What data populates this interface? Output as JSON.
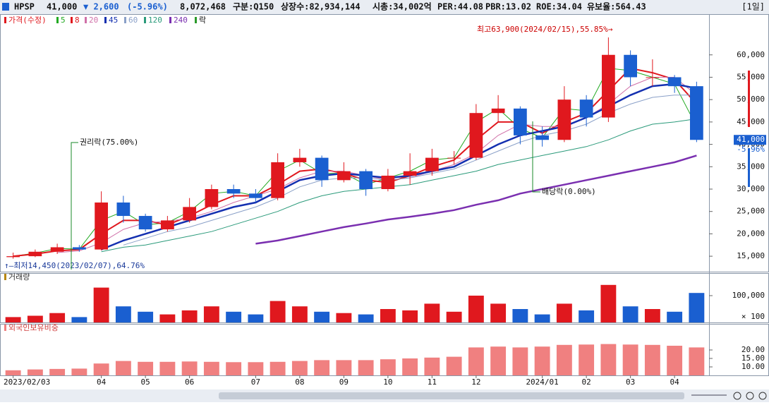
{
  "header": {
    "code": "HPSP",
    "price": "41,000",
    "change": "▼ 2,600",
    "change_pct": "(-5.96%)",
    "volume": "8,072,468",
    "market": "구분:Q150",
    "shares": "상장수:82,934,144",
    "market_cap": "시총:34,002억",
    "per": "PER:44.08",
    "pbr": "PBR:13.02",
    "roe": "ROE:34.04",
    "reserve": "유보율:564.43",
    "period": "[1일]"
  },
  "chart_data": [
    {
      "type": "candlestick",
      "legend_title": "가격(수정)",
      "legend_tail": "락",
      "up_color": "#e0181e",
      "down_color": "#1a5fd0",
      "categories": [
        "2023/02/03",
        null,
        null,
        null,
        "04",
        null,
        "05",
        null,
        "06",
        null,
        null,
        "07",
        null,
        "08",
        null,
        "09",
        null,
        "10",
        null,
        "11",
        null,
        "12",
        null,
        null,
        "2024/01",
        null,
        "02",
        null,
        "03",
        null,
        "04",
        null
      ],
      "open": [
        14800,
        15000,
        16000,
        17000,
        16500,
        27000,
        24000,
        21000,
        23000,
        26000,
        30000,
        29000,
        28000,
        36000,
        37000,
        32000,
        34000,
        30000,
        33000,
        34000,
        37000,
        37000,
        47000,
        48000,
        42000,
        41000,
        50000,
        46000,
        60000,
        55000,
        55000,
        53000
      ],
      "high": [
        15800,
        16500,
        17800,
        17500,
        29500,
        28500,
        24500,
        24000,
        28000,
        31000,
        31000,
        30000,
        38000,
        39000,
        37500,
        36000,
        34500,
        34500,
        38000,
        39000,
        38500,
        49000,
        51000,
        48500,
        44000,
        53000,
        51000,
        63900,
        61000,
        59000,
        55500,
        54000
      ],
      "low": [
        14450,
        14800,
        15500,
        16000,
        16300,
        22500,
        20500,
        20500,
        22500,
        25500,
        28000,
        27000,
        27500,
        35000,
        30500,
        31500,
        28500,
        29500,
        31000,
        33000,
        35500,
        36500,
        45000,
        40000,
        39500,
        40500,
        44000,
        45000,
        53000,
        53000,
        51500,
        40500
      ],
      "close": [
        15000,
        16000,
        17000,
        16500,
        27000,
        24000,
        21000,
        23000,
        26000,
        30000,
        29000,
        28000,
        36000,
        37000,
        32000,
        34000,
        30000,
        33000,
        34000,
        37000,
        37000,
        47000,
        48000,
        42000,
        41000,
        50000,
        46000,
        60000,
        55000,
        55000,
        53000,
        41000
      ],
      "series": [
        {
          "name": "5",
          "color": "#22aa22",
          "width": 1,
          "values": [
            15000,
            15700,
            16700,
            16600,
            23000,
            25000,
            22000,
            22500,
            25000,
            29000,
            29500,
            28500,
            34000,
            36500,
            33500,
            33500,
            31000,
            32500,
            34000,
            36500,
            37000,
            45000,
            48000,
            43500,
            41500,
            48000,
            47500,
            57000,
            56500,
            55000,
            53500,
            44000
          ]
        },
        {
          "name": "8",
          "color": "#e0181e",
          "width": 2,
          "values": [
            15000,
            15500,
            16200,
            16500,
            20000,
            23000,
            23000,
            22000,
            24000,
            26500,
            28500,
            28500,
            31000,
            34000,
            34500,
            33500,
            32000,
            31500,
            33000,
            35000,
            36500,
            41000,
            45000,
            45000,
            42500,
            45000,
            47000,
            52000,
            57000,
            56000,
            54500,
            49000
          ]
        },
        {
          "name": "20",
          "color": "#d070a8",
          "width": 1,
          "values": [
            null,
            null,
            15800,
            16200,
            18000,
            21000,
            22500,
            22800,
            23500,
            25000,
            27000,
            28500,
            30000,
            32500,
            34000,
            34000,
            33000,
            32000,
            32500,
            34000,
            35500,
            38000,
            42000,
            44500,
            44000,
            44000,
            46000,
            49000,
            53000,
            55000,
            55000,
            51000
          ]
        },
        {
          "name": "45",
          "color": "#1430b0",
          "width": 2.5,
          "values": [
            null,
            null,
            null,
            null,
            16500,
            18500,
            20000,
            21500,
            23000,
            24500,
            26000,
            27000,
            29500,
            32000,
            33000,
            33500,
            33000,
            32500,
            33000,
            34000,
            35000,
            37500,
            40000,
            42000,
            43000,
            44000,
            46000,
            48500,
            51000,
            53000,
            53500,
            52500
          ]
        },
        {
          "name": "60",
          "color": "#8aa0c8",
          "width": 1,
          "values": [
            null,
            null,
            null,
            null,
            null,
            17500,
            19000,
            20500,
            21500,
            23000,
            24500,
            26000,
            28000,
            30500,
            32000,
            32500,
            32500,
            32000,
            32500,
            33500,
            34500,
            36500,
            38500,
            40500,
            42000,
            43000,
            44500,
            47000,
            49000,
            50500,
            51000,
            51000
          ]
        },
        {
          "name": "120",
          "color": "#2a9a7a",
          "width": 1,
          "values": [
            null,
            null,
            null,
            null,
            16000,
            17000,
            17500,
            18500,
            19500,
            20500,
            22000,
            23500,
            25000,
            27000,
            28500,
            29500,
            30000,
            30500,
            31000,
            32000,
            33000,
            34000,
            35500,
            36500,
            37500,
            38500,
            39500,
            41000,
            43000,
            44500,
            45000,
            45700
          ]
        },
        {
          "name": "240",
          "color": "#7a2fb0",
          "width": 2.5,
          "values": [
            null,
            null,
            null,
            null,
            null,
            null,
            null,
            null,
            null,
            null,
            null,
            17800,
            18500,
            19500,
            20500,
            21500,
            22300,
            23200,
            23800,
            24500,
            25300,
            26500,
            27500,
            29000,
            30000,
            31000,
            32000,
            33000,
            34000,
            35000,
            36000,
            37500
          ]
        }
      ],
      "ylim": [
        11550,
        66900
      ],
      "yticks": [
        {
          "value": 15000,
          "label": "15,000"
        },
        {
          "value": 20000,
          "label": "20,000"
        },
        {
          "value": 25000,
          "label": "25,000"
        },
        {
          "value": 30000,
          "label": "30,000"
        },
        {
          "value": 35000,
          "label": "35,000"
        },
        {
          "value": 40000,
          "label": "40,000"
        },
        {
          "value": 45000,
          "label": "45,000"
        },
        {
          "value": 50000,
          "label": "50,000"
        },
        {
          "value": 55000,
          "label": "55,000"
        },
        {
          "value": 60000,
          "label": "60,000"
        }
      ],
      "last_price": {
        "value": 41000,
        "label": "41,000"
      },
      "last_change_label": "-5.96%",
      "annotations": [
        "최고63,900(2024/02/15),55.85%→",
        "↑—최저14,450(2023/02/07),64.76%",
        "권리락(75.00%)",
        "배당락(0.00%)"
      ]
    },
    {
      "type": "bar",
      "title": "거래량",
      "unit_label": "× 100",
      "values": [
        20000,
        25000,
        35000,
        20000,
        130000,
        60000,
        40000,
        30000,
        45000,
        60000,
        40000,
        30000,
        80000,
        60000,
        40000,
        35000,
        30000,
        50000,
        45000,
        70000,
        40000,
        100000,
        70000,
        50000,
        30000,
        70000,
        45000,
        140000,
        60000,
        50000,
        40000,
        110000
      ],
      "ylim": [
        0,
        150000
      ],
      "yticks": [
        {
          "value": 100000,
          "label": "100,000"
        }
      ]
    },
    {
      "type": "bar",
      "title": "외국인보유비중",
      "color": "#f08080",
      "values": [
        8,
        8.5,
        8.8,
        9,
        12,
        13.5,
        13,
        13,
        13.2,
        13,
        12.8,
        12.8,
        13,
        13.5,
        14,
        14,
        14,
        14.5,
        15,
        15.5,
        16,
        21.5,
        22,
        21.5,
        22,
        23,
        23.2,
        23.5,
        23.2,
        23,
        22.5,
        21.5
      ],
      "ylim": [
        5,
        30
      ],
      "yticks": [
        {
          "value": 10,
          "label": "10.00"
        },
        {
          "value": 15,
          "label": "15.00"
        },
        {
          "value": 20,
          "label": "20.00"
        }
      ]
    }
  ]
}
